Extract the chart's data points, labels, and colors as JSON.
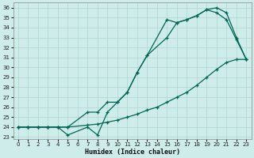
{
  "xlabel": "Humidex (Indice chaleur)",
  "bg_color": "#cdecea",
  "grid_color": "#b4d8d4",
  "line_color": "#006655",
  "xlim": [
    -0.5,
    23.5
  ],
  "ylim": [
    22.8,
    36.5
  ],
  "xticks": [
    0,
    1,
    2,
    3,
    4,
    5,
    6,
    7,
    8,
    9,
    10,
    11,
    12,
    13,
    14,
    15,
    16,
    17,
    18,
    19,
    20,
    21,
    22,
    23
  ],
  "yticks": [
    23,
    24,
    25,
    26,
    27,
    28,
    29,
    30,
    31,
    32,
    33,
    34,
    35,
    36
  ],
  "line1_x": [
    0,
    1,
    2,
    3,
    4,
    5,
    7,
    8,
    9,
    10,
    11,
    12,
    13,
    15,
    16,
    17,
    18,
    19,
    20,
    21,
    22,
    23
  ],
  "line1_y": [
    24.0,
    24.0,
    24.0,
    24.0,
    24.0,
    23.2,
    24.0,
    23.2,
    25.5,
    26.5,
    27.5,
    29.5,
    31.2,
    33.0,
    34.5,
    34.8,
    35.2,
    35.8,
    36.0,
    35.5,
    33.0,
    30.8
  ],
  "line2_x": [
    0,
    1,
    2,
    3,
    4,
    5,
    7,
    8,
    9,
    10,
    11,
    12,
    13,
    15,
    16,
    17,
    18,
    19,
    20,
    21,
    22,
    23
  ],
  "line2_y": [
    24.0,
    24.0,
    24.0,
    24.0,
    24.0,
    24.0,
    25.5,
    25.5,
    26.5,
    26.5,
    27.5,
    29.5,
    31.2,
    34.8,
    34.5,
    34.8,
    35.2,
    35.8,
    35.5,
    34.8,
    32.8,
    30.8
  ],
  "line3_x": [
    0,
    1,
    2,
    3,
    4,
    5,
    7,
    8,
    9,
    10,
    11,
    12,
    13,
    14,
    15,
    16,
    17,
    18,
    19,
    20,
    21,
    22,
    23
  ],
  "line3_y": [
    24.0,
    24.0,
    24.0,
    24.0,
    24.0,
    24.0,
    24.2,
    24.3,
    24.5,
    24.7,
    25.0,
    25.3,
    25.7,
    26.0,
    26.5,
    27.0,
    27.5,
    28.2,
    29.0,
    29.8,
    30.5,
    30.8,
    30.8
  ]
}
